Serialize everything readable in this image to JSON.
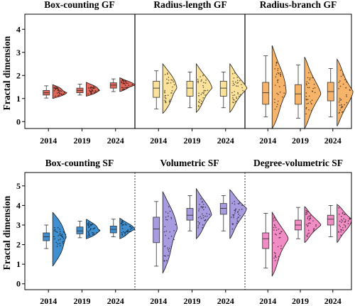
{
  "chart_data": [
    {
      "row": "top",
      "type": "raincloud",
      "ylabel": "Fractal dimension",
      "ylim": [
        -0.3,
        4.5
      ],
      "yticks": [
        0,
        1,
        2,
        3,
        4
      ],
      "categories": [
        "2014",
        "2019",
        "2024"
      ],
      "panels": [
        {
          "title": "Box-counting GF",
          "color": "#e0675a",
          "series": [
            {
              "year": "2014",
              "q1": 1.15,
              "median": 1.25,
              "q3": 1.35,
              "whisker_low": 1.02,
              "whisker_high": 1.55,
              "violin": [
                1.0,
                1.6
              ]
            },
            {
              "year": "2019",
              "q1": 1.25,
              "median": 1.35,
              "q3": 1.45,
              "whisker_low": 1.15,
              "whisker_high": 1.62,
              "violin": [
                1.1,
                1.7
              ]
            },
            {
              "year": "2024",
              "q1": 1.45,
              "median": 1.58,
              "q3": 1.68,
              "whisker_low": 1.3,
              "whisker_high": 1.85,
              "violin": [
                1.3,
                1.9
              ]
            }
          ]
        },
        {
          "title": "Radius-length GF",
          "color": "#fbe29b",
          "series": [
            {
              "year": "2014",
              "q1": 1.05,
              "median": 1.45,
              "q3": 1.75,
              "whisker_low": 0.55,
              "whisker_high": 2.2,
              "violin": [
                0.35,
                2.5
              ]
            },
            {
              "year": "2019",
              "q1": 1.1,
              "median": 1.45,
              "q3": 1.75,
              "whisker_low": 0.6,
              "whisker_high": 2.15,
              "violin": [
                0.4,
                2.5
              ]
            },
            {
              "year": "2024",
              "q1": 1.1,
              "median": 1.45,
              "q3": 1.75,
              "whisker_low": 0.6,
              "whisker_high": 2.15,
              "violin": [
                0.4,
                2.5
              ]
            }
          ]
        },
        {
          "title": "Radius-branch GF",
          "color": "#f6b46b",
          "series": [
            {
              "year": "2014",
              "q1": 0.75,
              "median": 1.25,
              "q3": 1.7,
              "whisker_low": 0.2,
              "whisker_high": 2.85,
              "violin": [
                -0.3,
                3.3
              ]
            },
            {
              "year": "2019",
              "q1": 0.75,
              "median": 1.2,
              "q3": 1.6,
              "whisker_low": 0.15,
              "whisker_high": 2.45,
              "violin": [
                -0.3,
                2.8
              ]
            },
            {
              "year": "2024",
              "q1": 0.9,
              "median": 1.3,
              "q3": 1.7,
              "whisker_low": 0.2,
              "whisker_high": 2.3,
              "violin": [
                -0.2,
                2.7
              ]
            }
          ]
        }
      ]
    },
    {
      "row": "bottom",
      "type": "raincloud",
      "ylabel": "Fractal dimension",
      "ylim": [
        -0.3,
        5.5
      ],
      "yticks": [
        0,
        1,
        2,
        3,
        4,
        5
      ],
      "categories": [
        "2014",
        "2019",
        "2024"
      ],
      "panels": [
        {
          "title": "Box-counting SF",
          "color": "#3f8fd1",
          "series": [
            {
              "year": "2014",
              "q1": 2.2,
              "median": 2.4,
              "q3": 2.6,
              "whisker_low": 1.8,
              "whisker_high": 3.0,
              "violin": [
                0.9,
                3.65
              ]
            },
            {
              "year": "2019",
              "q1": 2.55,
              "median": 2.7,
              "q3": 2.9,
              "whisker_low": 2.35,
              "whisker_high": 3.2,
              "violin": [
                2.3,
                3.3
              ]
            },
            {
              "year": "2024",
              "q1": 2.6,
              "median": 2.78,
              "q3": 2.95,
              "whisker_low": 2.4,
              "whisker_high": 3.3,
              "violin": [
                2.3,
                3.35
              ]
            }
          ]
        },
        {
          "title": "Volumetric SF",
          "color": "#a99be0",
          "series": [
            {
              "year": "2014",
              "q1": 2.1,
              "median": 2.8,
              "q3": 3.4,
              "whisker_low": 0.9,
              "whisker_high": 4.2,
              "violin": [
                0.55,
                4.7
              ]
            },
            {
              "year": "2019",
              "q1": 3.25,
              "median": 3.5,
              "q3": 3.85,
              "whisker_low": 2.7,
              "whisker_high": 4.5,
              "violin": [
                2.3,
                4.85
              ]
            },
            {
              "year": "2024",
              "q1": 3.55,
              "median": 3.85,
              "q3": 4.1,
              "whisker_low": 2.7,
              "whisker_high": 4.5,
              "violin": [
                2.3,
                4.8
              ]
            }
          ]
        },
        {
          "title": "Degree-volumetric SF",
          "color": "#f28cc5",
          "series": [
            {
              "year": "2014",
              "q1": 1.8,
              "median": 2.3,
              "q3": 2.6,
              "whisker_low": 0.8,
              "whisker_high": 3.6,
              "violin": [
                0.4,
                3.65
              ]
            },
            {
              "year": "2019",
              "q1": 2.75,
              "median": 3.0,
              "q3": 3.25,
              "whisker_low": 2.3,
              "whisker_high": 3.9,
              "violin": [
                2.1,
                3.95
              ]
            },
            {
              "year": "2024",
              "q1": 3.0,
              "median": 3.3,
              "q3": 3.5,
              "whisker_low": 2.4,
              "whisker_high": 4.0,
              "violin": [
                2.1,
                4.05
              ]
            }
          ]
        }
      ]
    }
  ]
}
